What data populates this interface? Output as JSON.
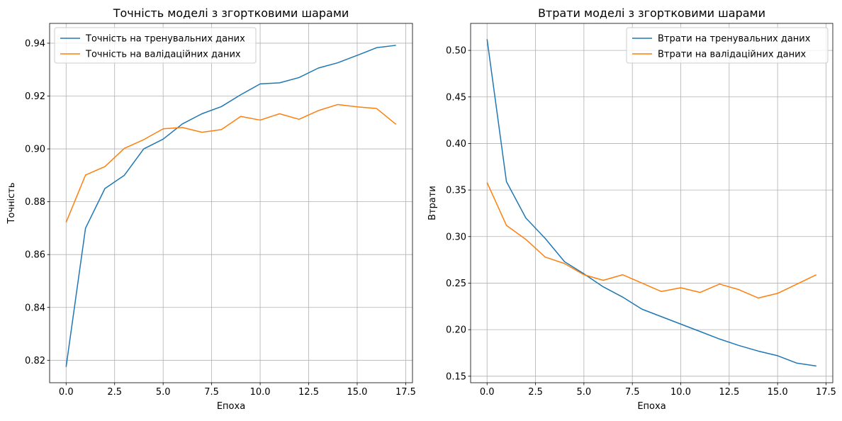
{
  "chart_data": [
    {
      "type": "line",
      "title": "Точність моделі з згортковими шарами",
      "xlabel": "Епоха",
      "ylabel": "Точність",
      "xlim": [
        -0.85,
        17.85
      ],
      "ylim": [
        0.8115,
        0.9475
      ],
      "xticks": [
        0,
        2.5,
        5,
        7.5,
        10,
        12.5,
        15,
        17.5
      ],
      "xtick_labels": [
        "0.0",
        "2.5",
        "5.0",
        "7.5",
        "10.0",
        "12.5",
        "15.0",
        "17.5"
      ],
      "yticks": [
        0.82,
        0.84,
        0.86,
        0.88,
        0.9,
        0.92,
        0.94
      ],
      "ytick_labels": [
        "0.82",
        "0.84",
        "0.86",
        "0.88",
        "0.90",
        "0.92",
        "0.94"
      ],
      "grid": true,
      "legend_position": "top-left",
      "x": [
        0,
        1,
        2,
        3,
        4,
        5,
        6,
        7,
        8,
        9,
        10,
        11,
        12,
        13,
        14,
        15,
        16,
        17
      ],
      "series": [
        {
          "name": "Точність на тренувальних даних",
          "color": "#1f77b4",
          "values": [
            0.8175,
            0.87,
            0.885,
            0.89,
            0.9,
            0.9037,
            0.9095,
            0.9133,
            0.916,
            0.9205,
            0.9246,
            0.925,
            0.927,
            0.9306,
            0.9326,
            0.9354,
            0.9383,
            0.9392
          ]
        },
        {
          "name": "Точність на валідаційних даних",
          "color": "#ff7f0e",
          "values": [
            0.8722,
            0.8901,
            0.8933,
            0.9002,
            0.9035,
            0.9076,
            0.9081,
            0.9063,
            0.9073,
            0.9123,
            0.9109,
            0.9133,
            0.9112,
            0.9145,
            0.9168,
            0.9159,
            0.9153,
            0.9093
          ]
        }
      ]
    },
    {
      "type": "line",
      "title": "Втрати моделі з згортковими шарами",
      "xlabel": "Епоха",
      "ylabel": "Втрати",
      "xlim": [
        -0.85,
        17.85
      ],
      "ylim": [
        0.143,
        0.529
      ],
      "xticks": [
        0,
        2.5,
        5,
        7.5,
        10,
        12.5,
        15,
        17.5
      ],
      "xtick_labels": [
        "0.0",
        "2.5",
        "5.0",
        "7.5",
        "10.0",
        "12.5",
        "15.0",
        "17.5"
      ],
      "yticks": [
        0.15,
        0.2,
        0.25,
        0.3,
        0.35,
        0.4,
        0.45,
        0.5
      ],
      "ytick_labels": [
        "0.15",
        "0.20",
        "0.25",
        "0.30",
        "0.35",
        "0.40",
        "0.45",
        "0.50"
      ],
      "grid": true,
      "legend_position": "top-right",
      "x": [
        0,
        1,
        2,
        3,
        4,
        5,
        6,
        7,
        8,
        9,
        10,
        11,
        12,
        13,
        14,
        15,
        16,
        17
      ],
      "series": [
        {
          "name": "Втрати на тренувальних даних",
          "color": "#1f77b4",
          "values": [
            0.512,
            0.359,
            0.32,
            0.298,
            0.273,
            0.26,
            0.246,
            0.235,
            0.222,
            0.214,
            0.206,
            0.198,
            0.19,
            0.183,
            0.177,
            0.172,
            0.164,
            0.161
          ]
        },
        {
          "name": "Втрати на валідаційних даних",
          "color": "#ff7f0e",
          "values": [
            0.358,
            0.312,
            0.297,
            0.278,
            0.271,
            0.259,
            0.253,
            0.259,
            0.25,
            0.241,
            0.245,
            0.24,
            0.249,
            0.243,
            0.234,
            0.239,
            0.249,
            0.259
          ]
        }
      ]
    }
  ]
}
